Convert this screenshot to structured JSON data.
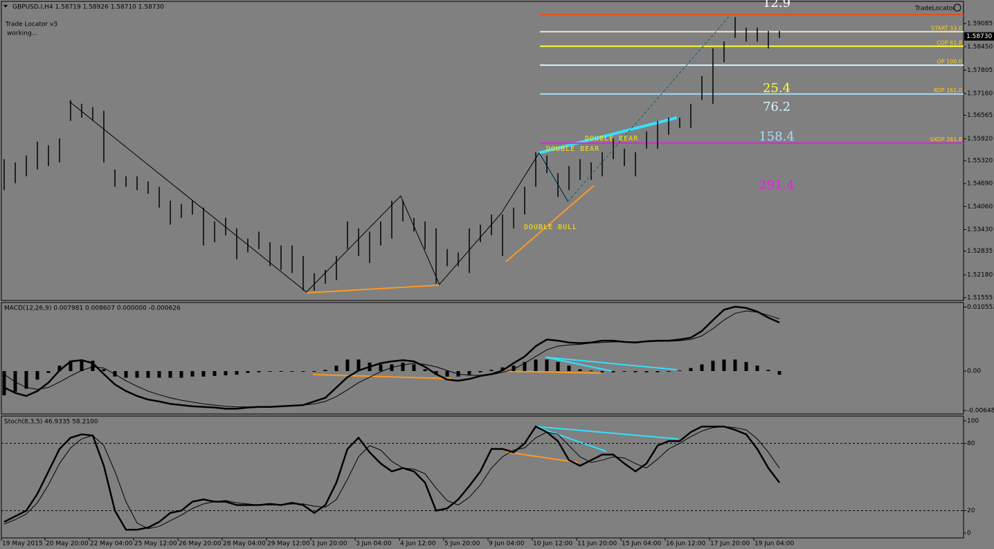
{
  "chart_data": [
    {
      "type": "hilo",
      "title": "GBPUSD.I,H4 1.58719 1.58926 1.58710 1.58730",
      "indicator": [
        "Trade Locator v3",
        "working..."
      ],
      "brand": "TradeLocator",
      "ylim": [
        1.5148,
        1.5973
      ],
      "yticks": [
        1.59085,
        {
          "value": 1.5845,
          "label": "1.58450"
        },
        1.57805,
        {
          "value": 1.5716,
          "label": "1.57160"
        },
        1.56565,
        {
          "value": 1.5592,
          "label": "1.55920"
        },
        {
          "value": 1.5532,
          "label": "1.55320"
        },
        {
          "value": 1.5469,
          "label": "1.54690"
        },
        {
          "value": 1.5406,
          "label": "1.54060"
        },
        {
          "value": 1.5343,
          "label": "1.53430"
        },
        1.52835,
        {
          "value": 1.5218,
          "label": "1.52180"
        },
        1.51555
      ],
      "color": "#000000",
      "high": [
        1.5536,
        1.5527,
        1.5546,
        1.5584,
        1.5574,
        1.5593,
        1.5698,
        1.5688,
        1.5679,
        1.5669,
        1.5508,
        1.5489,
        1.5489,
        1.5475,
        1.546,
        1.5422,
        1.5413,
        1.5422,
        1.5403,
        1.5365,
        1.5375,
        1.5346,
        1.5318,
        1.5337,
        1.5308,
        1.5299,
        1.5299,
        1.527,
        1.5223,
        1.5232,
        1.527,
        1.5365,
        1.5346,
        1.5337,
        1.5365,
        1.5422,
        1.5422,
        1.5375,
        1.5365,
        1.5346,
        1.5289,
        1.528,
        1.5346,
        1.5356,
        1.5384,
        1.5384,
        1.5403,
        1.546,
        1.5555,
        1.5546,
        1.5498,
        1.5517,
        1.5536,
        1.5527,
        1.5555,
        1.5593,
        1.5565,
        1.5555,
        1.5612,
        1.5641,
        1.565,
        1.565,
        1.5688,
        1.5764,
        1.584,
        1.5859,
        1.5926,
        1.5897,
        1.5897,
        1.5888,
        1.5888
      ],
      "low": [
        1.5451,
        1.547,
        1.5489,
        1.5508,
        1.5517,
        1.5527,
        1.5641,
        1.565,
        1.5641,
        1.5527,
        1.546,
        1.546,
        1.5451,
        1.5441,
        1.5403,
        1.5356,
        1.5375,
        1.5384,
        1.5299,
        1.5308,
        1.5327,
        1.5261,
        1.528,
        1.5289,
        1.5242,
        1.5232,
        1.5223,
        1.5175,
        1.5175,
        1.5194,
        1.5204,
        1.5289,
        1.527,
        1.5251,
        1.5299,
        1.5318,
        1.5365,
        1.5337,
        1.5289,
        1.5194,
        1.5242,
        1.5242,
        1.5223,
        1.5308,
        1.5327,
        1.527,
        1.5346,
        1.5384,
        1.546,
        1.5498,
        1.5432,
        1.5451,
        1.5479,
        1.5479,
        1.5489,
        1.5536,
        1.5517,
        1.5489,
        1.5565,
        1.5565,
        1.5603,
        1.5622,
        1.5622,
        1.5698,
        1.5688,
        1.5802,
        1.5869,
        1.5859,
        1.5859,
        1.584,
        1.5869
      ],
      "zigzag": {
        "x": [
          5.9,
          27.3,
          35.8,
          39.3,
          44.9,
          48.3,
          50.9
        ],
        "y": [
          1.5694,
          1.5171,
          1.5435,
          1.5192,
          1.5388,
          1.5553,
          1.542
        ]
      },
      "projection": {
        "x": [
          50.9,
          65.4
        ],
        "y": [
          1.542,
          1.5926
        ]
      },
      "levels": [
        {
          "value": 1.5933,
          "color": "#e0501c"
        },
        {
          "value": 1.5886,
          "color": "#f5e6c8",
          "label": "START 33.0"
        },
        {
          "value": 1.5846,
          "color": "#ffff33",
          "label": "COP 61.8"
        },
        {
          "value": 1.5794,
          "color": "#d8f4ff",
          "label": "OP 100.0"
        },
        {
          "value": 1.5715,
          "color": "#a8dcf8",
          "label": "XOP 161.0"
        },
        {
          "value": 1.558,
          "color": "#e020e0",
          "label": "SXOP 261.8"
        }
      ],
      "targets": [
        {
          "label": "12.9",
          "color": "#ffffff"
        },
        {
          "label": "25.4",
          "color": "#ffff33"
        },
        {
          "label": "76.2",
          "color": "#d8f4ff"
        },
        {
          "label": "158.4",
          "color": "#a8dcf8"
        },
        {
          "label": "291.4",
          "color": "#e020e0"
        }
      ],
      "price_label": {
        "value": 1.5873,
        "label": "1.58730"
      },
      "annotations": [
        "DOUBLE BULL",
        "DOUBLE BEAR",
        "DOUBLE BEAR"
      ]
    },
    {
      "type": "macd",
      "title": "MACD(12,26,9) 0.007981 0.008607 0.000000 -0.000626",
      "ylim": [
        -0.00707,
        0.01129
      ],
      "yticks": [
        0.010552,
        {
          "value": 0,
          "label": "0.00"
        },
        -0.006487
      ],
      "histogram": [
        -0.004,
        -0.0034,
        -0.0029,
        -0.0014,
        -0.0003,
        0.0009,
        0.0017,
        0.0019,
        0.0017,
        0.0003,
        -0.0009,
        -0.0011,
        -0.0011,
        -0.0011,
        -0.0011,
        -0.0011,
        -0.0011,
        -0.0009,
        -0.0009,
        -0.0008,
        -0.0007,
        -0.0006,
        -0.0003,
        -0.0002,
        -0.0001,
        -0.0001,
        -0.0001,
        -0.0001,
        -0.0001,
        0.0002,
        0.0009,
        0.0019,
        0.0019,
        0.0014,
        0.0011,
        0.0011,
        0.0014,
        0.0011,
        0.0003,
        -0.0006,
        -0.0009,
        -0.0009,
        -0.0006,
        -0.0002,
        0.0002,
        0.0006,
        0.0009,
        0.0015,
        0.0019,
        0.0019,
        0.0015,
        0.0009,
        0.0003,
        0.0001,
        -0.0002,
        -0.0002,
        -0.0001,
        -0.0002,
        -0.0002,
        -0.0002,
        -0.0001,
        0.0001,
        0.0005,
        0.0011,
        0.0017,
        0.0019,
        0.0019,
        0.0015,
        0.0009,
        0.0002,
        -0.0006
      ],
      "lines": [
        {
          "color": "#000000",
          "values": [
            -0.0027,
            -0.0036,
            -0.0041,
            -0.0033,
            -0.0019,
            0.0001,
            0.0016,
            0.0018,
            0.0013,
            -0.0005,
            -0.0022,
            -0.0033,
            -0.0041,
            -0.0047,
            -0.005,
            -0.0054,
            -0.0056,
            -0.0058,
            -0.0059,
            -0.006,
            -0.0062,
            -0.0062,
            -0.006,
            -0.0059,
            -0.0059,
            -0.0058,
            -0.0057,
            -0.0056,
            -0.005,
            -0.0044,
            -0.0027,
            -0.001,
            0.0001,
            0.0007,
            0.0013,
            0.0016,
            0.0018,
            0.0016,
            0.0007,
            -0.0005,
            -0.0014,
            -0.0016,
            -0.0013,
            -0.0008,
            -0.0005,
            0.0001,
            0.0013,
            0.0024,
            0.0041,
            0.0052,
            0.005,
            0.0047,
            0.0046,
            0.0047,
            0.005,
            0.005,
            0.0048,
            0.0047,
            0.0049,
            0.005,
            0.005,
            0.0052,
            0.0055,
            0.0066,
            0.0084,
            0.0101,
            0.0106,
            0.0104,
            0.0098,
            0.0088,
            0.008
          ]
        },
        {
          "color": "#000000",
          "values": [
            -0.0005,
            -0.0018,
            -0.0027,
            -0.003,
            -0.0027,
            -0.0018,
            -0.0008,
            0.0001,
            0.0007,
            0.0005,
            -0.0005,
            -0.0016,
            -0.0025,
            -0.0033,
            -0.0039,
            -0.0044,
            -0.0048,
            -0.0051,
            -0.0054,
            -0.0056,
            -0.0058,
            -0.0059,
            -0.0059,
            -0.0059,
            -0.0059,
            -0.0058,
            -0.0057,
            -0.0056,
            -0.0054,
            -0.005,
            -0.0042,
            -0.0031,
            -0.0019,
            -0.001,
            -0.0001,
            0.0006,
            0.001,
            0.0013,
            0.0011,
            0.0007,
            0.0001,
            -0.0005,
            -0.0007,
            -0.0007,
            -0.0006,
            -0.0002,
            0.0003,
            0.0013,
            0.0024,
            0.0035,
            0.0041,
            0.0043,
            0.0044,
            0.0046,
            0.0047,
            0.0048,
            0.0048,
            0.0048,
            0.0048,
            0.0049,
            0.0049,
            0.005,
            0.0052,
            0.0058,
            0.007,
            0.0084,
            0.0095,
            0.0099,
            0.0097,
            0.0092,
            0.0086
          ]
        }
      ]
    },
    {
      "type": "stochastic",
      "title": "Stoch(8,3,5) 46.9335 58.2100",
      "ylim": [
        -4.3,
        104.3
      ],
      "yticks": [
        100,
        80,
        20,
        0
      ],
      "levels": [
        80,
        20
      ],
      "lines": [
        {
          "color": "#000000",
          "values": [
            10,
            15,
            20,
            35,
            55,
            75,
            85,
            88,
            87,
            60,
            20,
            3,
            3,
            5,
            10,
            18,
            20,
            28,
            30,
            28,
            28,
            25,
            25,
            25,
            26,
            25,
            27,
            25,
            18,
            25,
            45,
            75,
            85,
            72,
            62,
            55,
            58,
            55,
            45,
            20,
            22,
            30,
            42,
            55,
            75,
            75,
            72,
            80,
            95,
            90,
            82,
            65,
            60,
            65,
            70,
            70,
            62,
            55,
            62,
            78,
            82,
            82,
            90,
            95,
            95,
            95,
            92,
            88,
            75,
            58,
            45
          ]
        },
        {
          "color": "#000000",
          "values": [
            8,
            12,
            17,
            27,
            43,
            62,
            76,
            84,
            87,
            78,
            55,
            28,
            9,
            4,
            6,
            11,
            16,
            22,
            26,
            28,
            29,
            27,
            26,
            25,
            25,
            25,
            26,
            26,
            24,
            23,
            30,
            48,
            68,
            78,
            74,
            64,
            58,
            57,
            53,
            40,
            29,
            25,
            32,
            43,
            58,
            68,
            74,
            76,
            85,
            90,
            88,
            78,
            68,
            63,
            65,
            68,
            67,
            62,
            58,
            66,
            75,
            80,
            86,
            91,
            94,
            95,
            94,
            92,
            84,
            72,
            58
          ]
        }
      ],
      "xlabels": [
        "19 May 2015",
        "20 May 20:00",
        "22 May 04:00",
        "25 May 12:00",
        "26 May 20:00",
        "28 May 04:00",
        "29 May 12:00",
        "1 Jun 20:00",
        "3 Jun 04:00",
        "4 Jun 12:00",
        "5 Jun 20:00",
        "9 Jun 04:00",
        "10 Jun 12:00",
        "11 Jun 20:00",
        "15 Jun 04:00",
        "16 Jun 12:00",
        "17 Jun 20:00",
        "19 Jun 04:00"
      ]
    }
  ]
}
